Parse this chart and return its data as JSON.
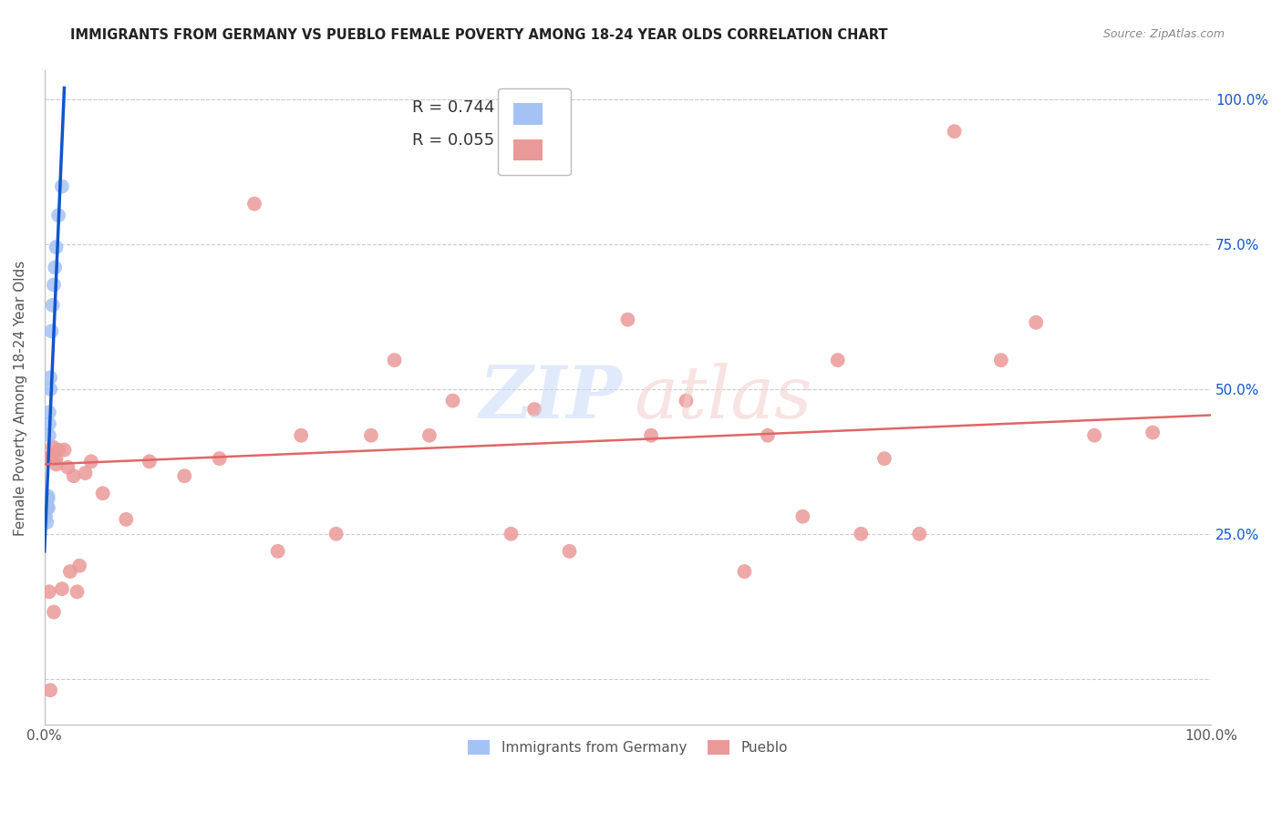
{
  "title": "IMMIGRANTS FROM GERMANY VS PUEBLO FEMALE POVERTY AMONG 18-24 YEAR OLDS CORRELATION CHART",
  "source": "Source: ZipAtlas.com",
  "ylabel": "Female Poverty Among 18-24 Year Olds",
  "legend_blue_label": "Immigrants from Germany",
  "legend_pink_label": "Pueblo",
  "blue_color": "#a4c2f4",
  "pink_color": "#ea9999",
  "blue_line_color": "#1155cc",
  "pink_line_color": "#e06666",
  "xlim": [
    0.0,
    1.0
  ],
  "ylim": [
    -0.08,
    1.05
  ],
  "yticks": [
    0.0,
    0.25,
    0.5,
    0.75,
    1.0
  ],
  "blue_scatter_x": [
    0.001,
    0.001,
    0.002,
    0.002,
    0.002,
    0.003,
    0.003,
    0.003,
    0.004,
    0.004,
    0.004,
    0.005,
    0.005,
    0.006,
    0.007,
    0.008,
    0.009,
    0.01,
    0.012,
    0.015
  ],
  "blue_scatter_y": [
    0.28,
    0.29,
    0.3,
    0.295,
    0.27,
    0.295,
    0.31,
    0.315,
    0.42,
    0.44,
    0.46,
    0.5,
    0.52,
    0.6,
    0.645,
    0.68,
    0.71,
    0.745,
    0.8,
    0.85
  ],
  "pink_scatter_x": [
    0.001,
    0.001,
    0.003,
    0.004,
    0.005,
    0.006,
    0.007,
    0.008,
    0.01,
    0.01,
    0.012,
    0.015,
    0.017,
    0.02,
    0.022,
    0.025,
    0.028,
    0.03,
    0.035,
    0.04,
    0.05,
    0.07,
    0.09,
    0.12,
    0.15,
    0.18,
    0.2,
    0.22,
    0.25,
    0.28,
    0.3,
    0.33,
    0.35,
    0.4,
    0.42,
    0.45,
    0.5,
    0.52,
    0.55,
    0.6,
    0.62,
    0.65,
    0.68,
    0.7,
    0.72,
    0.75,
    0.78,
    0.82,
    0.85,
    0.9,
    0.95
  ],
  "pink_scatter_y": [
    0.295,
    0.38,
    0.295,
    0.15,
    -0.02,
    0.385,
    0.4,
    0.115,
    0.38,
    0.37,
    0.395,
    0.155,
    0.395,
    0.365,
    0.185,
    0.35,
    0.15,
    0.195,
    0.355,
    0.375,
    0.32,
    0.275,
    0.375,
    0.35,
    0.38,
    0.82,
    0.22,
    0.42,
    0.25,
    0.42,
    0.55,
    0.42,
    0.48,
    0.25,
    0.465,
    0.22,
    0.62,
    0.42,
    0.48,
    0.185,
    0.42,
    0.28,
    0.55,
    0.25,
    0.38,
    0.25,
    0.945,
    0.55,
    0.615,
    0.42,
    0.425
  ],
  "blue_line_x": [
    0.0,
    0.017
  ],
  "blue_line_y_start": 0.22,
  "blue_line_y_end": 1.02,
  "pink_line_x": [
    0.0,
    1.0
  ],
  "pink_line_y_start": 0.37,
  "pink_line_y_end": 0.455
}
